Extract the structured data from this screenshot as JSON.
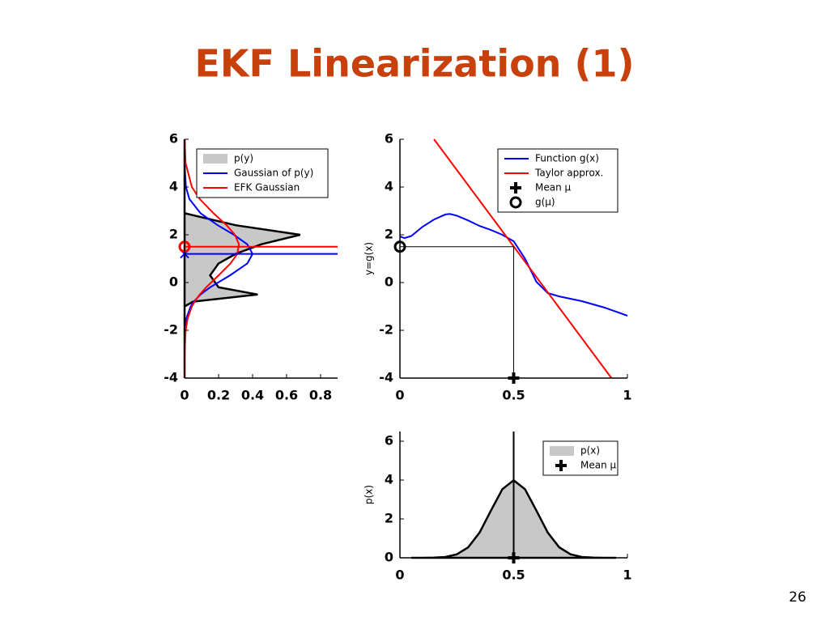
{
  "title": "EKF Linearization (1)",
  "page_number": "26",
  "chart_data": [
    {
      "type": "line",
      "orientation": "horizontal",
      "y": [
        -4,
        -3,
        -2,
        -1.5,
        -1,
        -0.8,
        -0.5,
        -0.2,
        0.3,
        0.8,
        1.2,
        1.6,
        2,
        2.4,
        2.9,
        3.5,
        4,
        5,
        6
      ],
      "xlim": [
        0,
        0.9
      ],
      "xticks": [
        0,
        0.2,
        0.4,
        0.6,
        0.8
      ],
      "ylim": [
        -4,
        6
      ],
      "yticks": [
        -4,
        -2,
        0,
        2,
        4,
        6
      ],
      "legend": "upper right",
      "series": [
        {
          "name": "p(y)",
          "color": "#000000",
          "fill": "#c8c8c8",
          "values": [
            0,
            0,
            0,
            0,
            0,
            0.05,
            0.43,
            0.2,
            0.15,
            0.2,
            0.3,
            0.45,
            0.68,
            0.3,
            0,
            0,
            0,
            0,
            0
          ]
        },
        {
          "name": "Gaussian of p(y)",
          "color": "#0000ff",
          "values": [
            0,
            0,
            0.002,
            0.01,
            0.036,
            0.054,
            0.094,
            0.15,
            0.267,
            0.369,
            0.4,
            0.369,
            0.29,
            0.195,
            0.094,
            0.028,
            0.008,
            0,
            0
          ]
        },
        {
          "name": "EFK Gaussian",
          "color": "#ff0000",
          "values": [
            0,
            0.0005,
            0.006,
            0.018,
            0.043,
            0.059,
            0.089,
            0.127,
            0.2,
            0.27,
            0.31,
            0.32,
            0.296,
            0.247,
            0.17,
            0.089,
            0.043,
            0.006,
            0.0005
          ]
        }
      ],
      "hlines": [
        {
          "value": 1.2,
          "color": "#0000ff",
          "marker": "x"
        },
        {
          "value": 1.5,
          "color": "#ff0000",
          "marker": "circle"
        }
      ]
    },
    {
      "type": "line",
      "ylabel": "y=g(x)",
      "xlim": [
        0,
        1
      ],
      "xticks": [
        0,
        0.5,
        1
      ],
      "ylim": [
        -4,
        6
      ],
      "yticks": [
        -4,
        -2,
        0,
        2,
        4,
        6
      ],
      "legend": "upper right",
      "guide_lines": true,
      "series": [
        {
          "name": "Function g(x)",
          "color": "#0000ff",
          "x": [
            0,
            0.02,
            0.05,
            0.1,
            0.15,
            0.2,
            0.22,
            0.25,
            0.3,
            0.35,
            0.4,
            0.45,
            0.5,
            0.55,
            0.6,
            0.65,
            0.7,
            0.8,
            0.9,
            1
          ],
          "values": [
            1.93,
            1.86,
            1.95,
            2.34,
            2.64,
            2.85,
            2.87,
            2.8,
            2.6,
            2.37,
            2.2,
            2.0,
            1.73,
            1.0,
            0.03,
            -0.44,
            -0.58,
            -0.78,
            -1.05,
            -1.39
          ]
        },
        {
          "name": "Taylor approx.",
          "color": "#ff0000",
          "x": [
            0.15,
            0.93
          ],
          "values": [
            6,
            -4
          ]
        },
        {
          "name": "Mean μ",
          "color": "#000000",
          "marker": "plus",
          "x": [
            0.5
          ],
          "values": [
            -4
          ]
        },
        {
          "name": "g(μ)",
          "color": "#000000",
          "marker": "circle",
          "x": [
            0
          ],
          "values": [
            1.5
          ]
        }
      ]
    },
    {
      "type": "line",
      "ylabel": "p(x)",
      "xlim": [
        0,
        1
      ],
      "xticks": [
        0,
        0.5,
        1
      ],
      "ylim": [
        0,
        6.5
      ],
      "yticks": [
        0,
        2,
        4,
        6
      ],
      "legend": "upper right",
      "series": [
        {
          "name": "p(x)",
          "color": "#000000",
          "fill": "#c8c8c8",
          "x": [
            0.05,
            0.1,
            0.15,
            0.2,
            0.25,
            0.3,
            0.35,
            0.4,
            0.45,
            0.5,
            0.55,
            0.6,
            0.65,
            0.7,
            0.75,
            0.8,
            0.85,
            0.9,
            0.95
          ],
          "values": [
            0,
            0,
            0.01,
            0.04,
            0.18,
            0.54,
            1.3,
            2.43,
            3.53,
            3.99,
            3.53,
            2.43,
            1.3,
            0.54,
            0.18,
            0.04,
            0.01,
            0,
            0
          ]
        },
        {
          "name": "Mean μ",
          "color": "#000000",
          "marker": "plus",
          "vertical_line": true,
          "x": [
            0.5
          ],
          "values": [
            0
          ]
        }
      ]
    }
  ]
}
